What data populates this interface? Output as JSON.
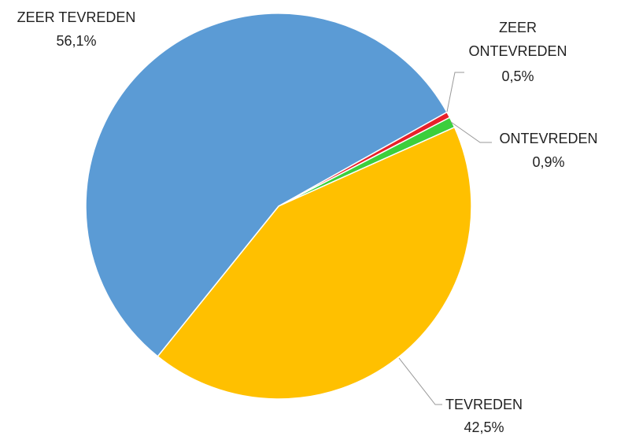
{
  "chart_data": {
    "type": "pie",
    "categories": [
      "ZEER ONTEVREDEN",
      "ONTEVREDEN",
      "TEVREDEN",
      "ZEER TEVREDEN"
    ],
    "values": [
      0.5,
      0.9,
      42.5,
      56.1
    ],
    "value_labels": [
      "0,5%",
      "0,9%",
      "42,5%",
      "56,1%"
    ],
    "colors": [
      "#e8202a",
      "#3ccf3c",
      "#ffc000",
      "#5b9bd5"
    ]
  }
}
